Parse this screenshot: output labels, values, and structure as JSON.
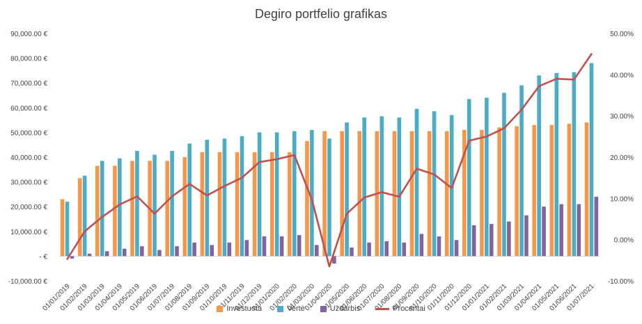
{
  "chart_data": {
    "type": "bar",
    "title": "Degiro portfelio grafikas",
    "categories": [
      "01/01/2019",
      "01/02/2019",
      "01/03/2019",
      "01/04/2019",
      "01/05/2019",
      "01/06/2019",
      "01/07/2019",
      "01/08/2019",
      "01/09/2019",
      "01/10/2019",
      "01/11/2019",
      "01/12/2019",
      "01/01/2020",
      "01/02/2020",
      "01/03/2020",
      "01/04/2020",
      "01/05/2020",
      "01/06/2020",
      "01/07/2020",
      "01/08/2020",
      "01/09/2020",
      "01/10/2020",
      "01/11/2020",
      "01/12/2020",
      "01/01/2021",
      "01/02/2021",
      "01/03/2021",
      "01/04/2021",
      "01/05/2021",
      "01/06/2021",
      "01/07/2021"
    ],
    "series": [
      {
        "name": "Investuota",
        "axis": "left",
        "kind": "bar",
        "color": "#F79646",
        "values": [
          23000,
          31500,
          36500,
          36500,
          38500,
          38500,
          38500,
          40000,
          42000,
          42000,
          42000,
          42000,
          42000,
          42000,
          46500,
          50500,
          50500,
          50500,
          50500,
          50500,
          50500,
          50500,
          50500,
          51000,
          51000,
          52000,
          52500,
          53000,
          53000,
          53500,
          54000
        ]
      },
      {
        "name": "Vertė",
        "axis": "left",
        "kind": "bar",
        "color": "#4BACC6",
        "values": [
          22000,
          32500,
          38500,
          39500,
          42500,
          41000,
          42500,
          45500,
          47000,
          47500,
          48500,
          50000,
          50000,
          50500,
          51000,
          47500,
          54000,
          56000,
          56500,
          56000,
          59500,
          58500,
          57000,
          63500,
          64000,
          66000,
          69000,
          73000,
          74000,
          74300,
          78000
        ]
      },
      {
        "name": "Uždarbis",
        "axis": "left",
        "kind": "bar",
        "color": "#8064A2",
        "values": [
          -1000,
          1000,
          2000,
          3000,
          4000,
          2500,
          4000,
          5500,
          4500,
          5500,
          6500,
          8000,
          8000,
          8500,
          4500,
          -3000,
          3500,
          5500,
          6000,
          5500,
          9000,
          8000,
          6500,
          12500,
          13000,
          14000,
          16500,
          20000,
          21000,
          21000,
          24000
        ]
      },
      {
        "name": "Procentai",
        "axis": "right",
        "kind": "line",
        "color": "#C0504D",
        "values": [
          -0.047,
          0.02,
          0.055,
          0.085,
          0.105,
          0.063,
          0.105,
          0.135,
          0.107,
          0.13,
          0.15,
          0.188,
          0.195,
          0.205,
          0.097,
          -0.065,
          0.063,
          0.102,
          0.115,
          0.104,
          0.172,
          0.158,
          0.125,
          0.24,
          0.25,
          0.27,
          0.315,
          0.372,
          0.39,
          0.388,
          0.45
        ]
      }
    ],
    "y_left": {
      "min": -10000,
      "max": 90000,
      "step": 10000,
      "tick_labels": [
        "-10,000.00 €",
        "-   €",
        "10,000.00 €",
        "20,000.00 €",
        "30,000.00 €",
        "40,000.00 €",
        "50,000.00 €",
        "60,000.00 €",
        "70,000.00 €",
        "80,000.00 €",
        "90,000.00 €"
      ]
    },
    "y_right": {
      "min": -0.1,
      "max": 0.5,
      "step": 0.1,
      "tick_labels": [
        "-10.00%",
        "0.00%",
        "10.00%",
        "20.00%",
        "30.00%",
        "40.00%",
        "50.00%"
      ]
    },
    "grid": false,
    "legend_position": "bottom"
  }
}
